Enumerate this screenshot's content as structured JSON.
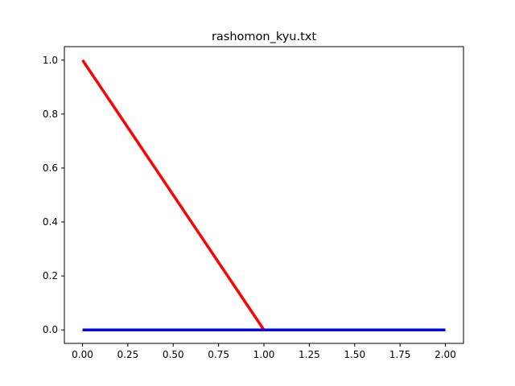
{
  "chart_data": {
    "type": "line",
    "title": "rashomon_kyu.txt",
    "xlabel": "",
    "ylabel": "",
    "xlim": [
      -0.1,
      2.1
    ],
    "ylim": [
      -0.05,
      1.05
    ],
    "xticks": [
      0.0,
      0.25,
      0.5,
      0.75,
      1.0,
      1.25,
      1.5,
      1.75,
      2.0
    ],
    "xtick_labels": [
      "0.00",
      "0.25",
      "0.50",
      "0.75",
      "1.00",
      "1.25",
      "1.50",
      "1.75",
      "2.00"
    ],
    "yticks": [
      0.0,
      0.2,
      0.4,
      0.6,
      0.8,
      1.0
    ],
    "ytick_labels": [
      "0.0",
      "0.2",
      "0.4",
      "0.6",
      "0.8",
      "1.0"
    ],
    "grid": false,
    "series": [
      {
        "color": "#ff0000",
        "x": [
          0.0,
          1.0,
          2.0
        ],
        "y": [
          1.0,
          0.0,
          0.0
        ]
      },
      {
        "color": "#0000ff",
        "x": [
          0.0,
          1.0,
          2.0
        ],
        "y": [
          0.0,
          0.0,
          0.0
        ]
      }
    ]
  }
}
